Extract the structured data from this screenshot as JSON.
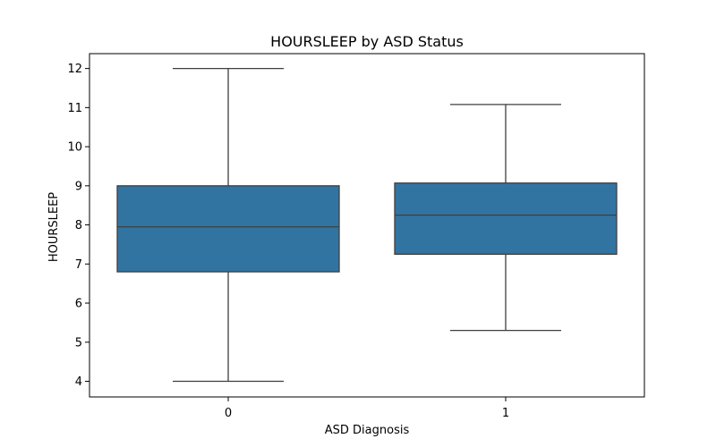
{
  "chart_data": {
    "type": "box",
    "title": "HOURSLEEP by ASD Status",
    "xlabel": "ASD Diagnosis",
    "ylabel": "HOURSLEEP",
    "categories": [
      "0",
      "1"
    ],
    "boxes": [
      {
        "category": "0",
        "whisker_low": 4.0,
        "q1": 6.8,
        "median": 7.95,
        "q3": 9.0,
        "whisker_high": 12.0
      },
      {
        "category": "1",
        "whisker_low": 5.3,
        "q1": 7.25,
        "median": 8.25,
        "q3": 9.07,
        "whisker_high": 11.08
      }
    ],
    "ylim": [
      3.6,
      12.38
    ],
    "yticks": [
      4,
      5,
      6,
      7,
      8,
      9,
      10,
      11,
      12
    ],
    "box_color": "#3274a1",
    "line_color": "#3f3f3f",
    "grid": false
  }
}
